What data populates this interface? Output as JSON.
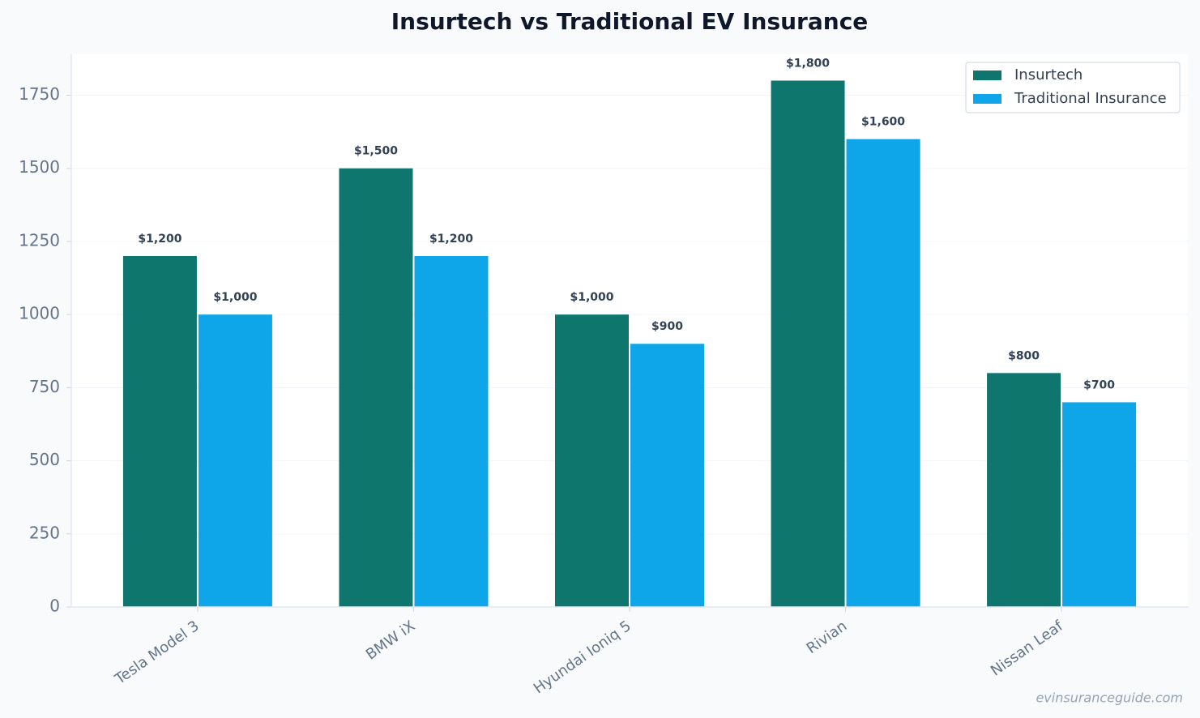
{
  "chart_data": {
    "type": "bar",
    "title": "Insurtech vs Traditional EV Insurance",
    "categories": [
      "Tesla Model 3",
      "BMW iX",
      "Hyundai Ioniq 5",
      "Rivian",
      "Nissan Leaf"
    ],
    "series": [
      {
        "name": "Insurtech",
        "color": "#0f766e",
        "values": [
          1200,
          1500,
          1000,
          1800,
          800
        ],
        "value_labels": [
          "$1,200",
          "$1,500",
          "$1,000",
          "$1,800",
          "$800"
        ]
      },
      {
        "name": "Traditional Insurance",
        "color": "#0ea5e9",
        "values": [
          1000,
          1200,
          900,
          1600,
          700
        ],
        "value_labels": [
          "$1,000",
          "$1,200",
          "$900",
          "$1,600",
          "$700"
        ]
      }
    ],
    "ylim": [
      0,
      1890
    ],
    "yticks": [
      0,
      250,
      500,
      750,
      1000,
      1250,
      1500,
      1750
    ],
    "grid": true,
    "legend": "upper right",
    "watermark": "evinsuranceguide.com"
  }
}
